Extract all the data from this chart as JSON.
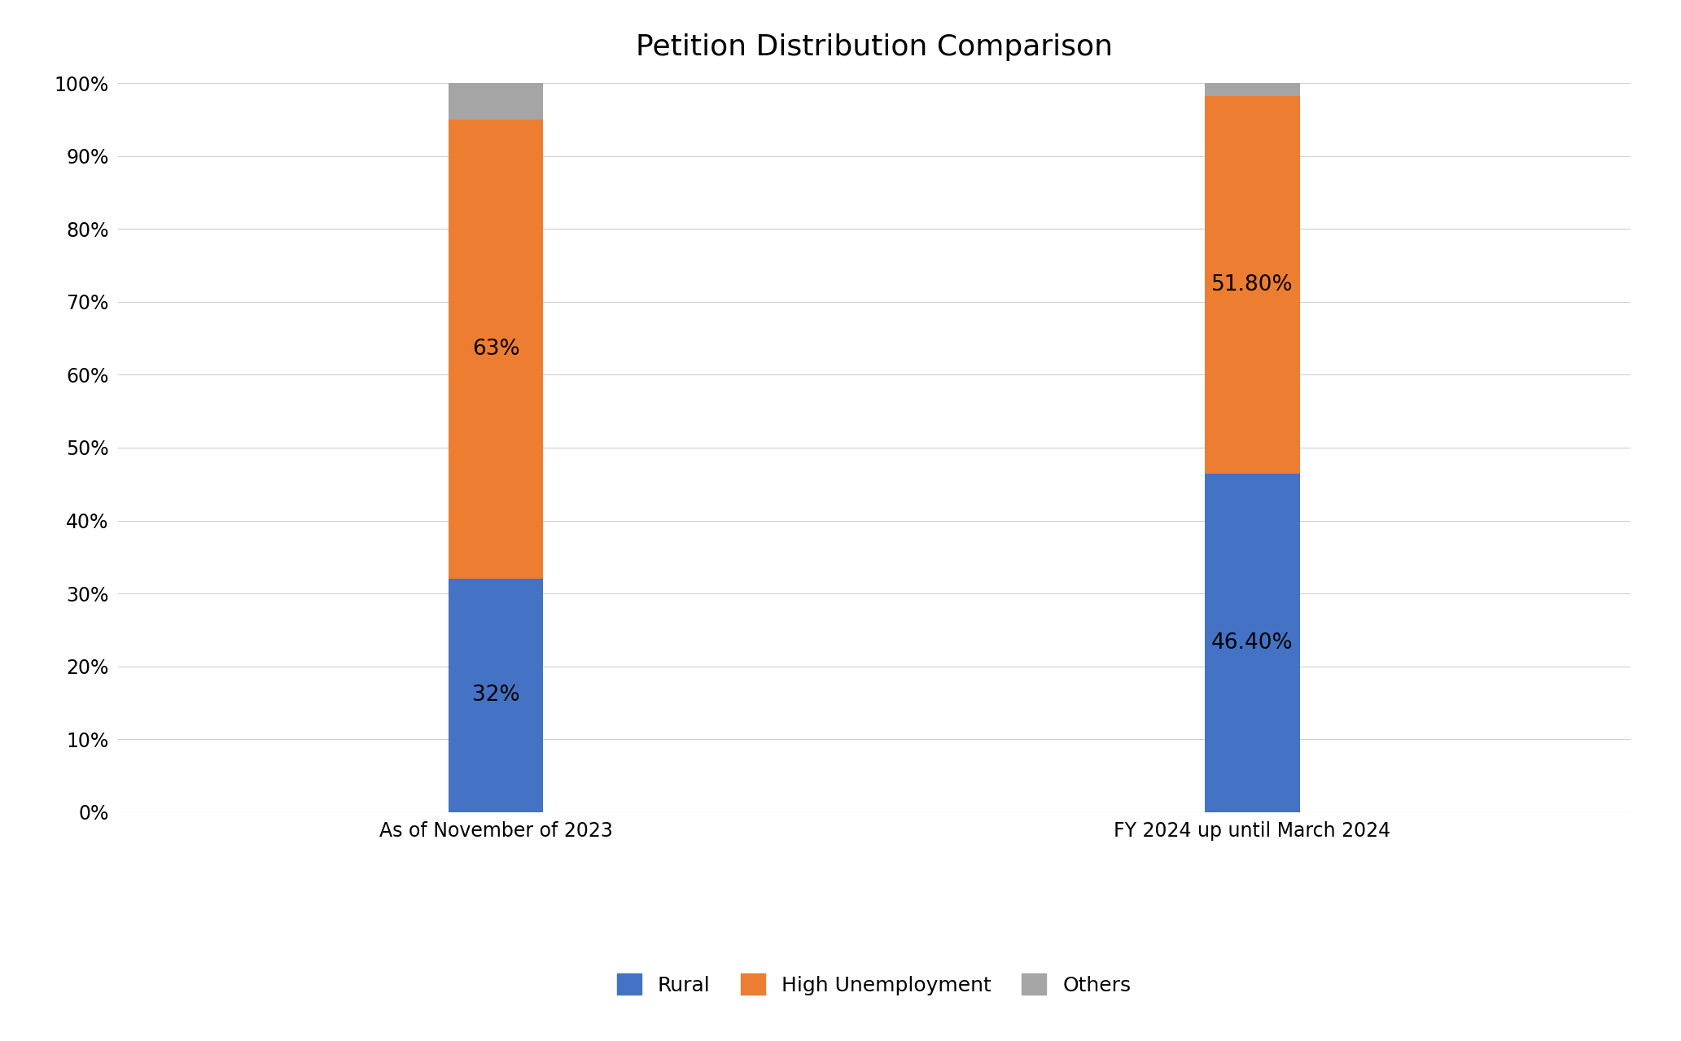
{
  "title": "Petition Distribution Comparison",
  "categories": [
    "As of November of 2023",
    "FY 2024 up until March 2024"
  ],
  "series": [
    {
      "name": "Rural",
      "values": [
        32,
        46.4
      ],
      "color": "#4472C4",
      "labels": [
        "32%",
        "46.40%"
      ]
    },
    {
      "name": "High Unemployment",
      "values": [
        63,
        51.8
      ],
      "color": "#ED7D31",
      "labels": [
        "63%",
        "51.80%"
      ]
    },
    {
      "name": "Others",
      "values": [
        5,
        1.8
      ],
      "color": "#A5A5A5",
      "labels": [
        "",
        ""
      ]
    }
  ],
  "ylim": [
    0,
    100
  ],
  "yticks": [
    0,
    10,
    20,
    30,
    40,
    50,
    60,
    70,
    80,
    90,
    100
  ],
  "ytick_labels": [
    "0%",
    "10%",
    "20%",
    "30%",
    "40%",
    "50%",
    "60%",
    "70%",
    "80%",
    "90%",
    "100%"
  ],
  "background_color": "#FFFFFF",
  "title_fontsize": 26,
  "tick_fontsize": 17,
  "label_fontsize": 19,
  "legend_fontsize": 18,
  "bar_width": 0.25,
  "bar_positions": [
    1,
    3
  ],
  "xlim": [
    0,
    4
  ],
  "grid_color": "#D0D0D0",
  "grid_linewidth": 0.8
}
